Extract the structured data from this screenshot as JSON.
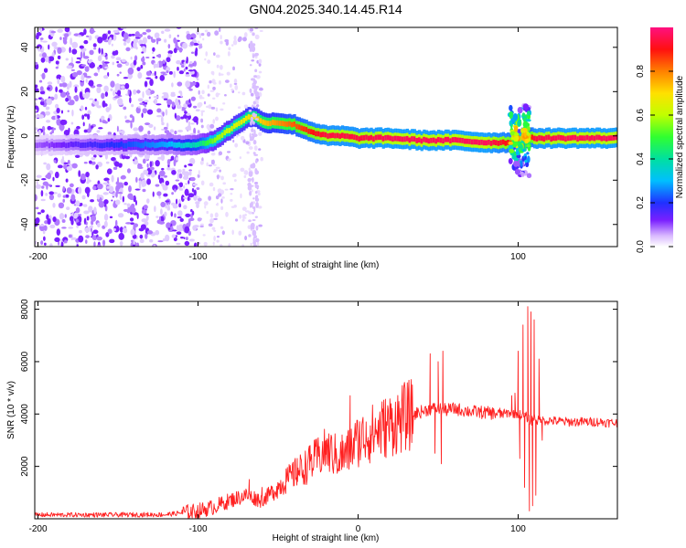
{
  "figure_title": "GN04.2025.340.14.45.R14",
  "chart_data": [
    {
      "type": "heatmap",
      "title": "GN04.2025.340.14.45.R14",
      "xlabel": "Height of straight line (km)",
      "ylabel": "Frequency (Hz)",
      "xlim": [
        -202,
        162
      ],
      "ylim": [
        -50,
        49
      ],
      "x_ticks": [
        -200,
        -100,
        0,
        100
      ],
      "x_tick_labels": [
        "-200",
        "-100",
        "",
        "100"
      ],
      "y_ticks": [
        -40,
        -20,
        0,
        20,
        40
      ],
      "y_tick_labels": [
        "-40",
        "-20",
        "0",
        "20",
        "40"
      ],
      "colorbar": {
        "label": "Normalized spectral amplitude",
        "range": [
          0,
          1
        ],
        "ticks": [
          0,
          0.2,
          0.4,
          0.6,
          0.8
        ],
        "tick_labels": [
          "0.0",
          "0.2",
          "0.4",
          "0.6",
          "0.8"
        ],
        "colors": [
          "#ffffff",
          "#d9b8ff",
          "#7a20ff",
          "#2030ff",
          "#00bfff",
          "#00e0a0",
          "#30ff30",
          "#c0ff00",
          "#ffe000",
          "#ff8000",
          "#ff1010",
          "#ff1080"
        ]
      },
      "ridge": {
        "x": [
          -200,
          -180,
          -160,
          -140,
          -120,
          -110,
          -100,
          -90,
          -80,
          -70,
          -65,
          -60,
          -50,
          -40,
          -30,
          -20,
          -10,
          0,
          20,
          40,
          60,
          80,
          95,
          100,
          110,
          130,
          160
        ],
        "freq": [
          -4,
          -4,
          -4,
          -4,
          -4,
          -4,
          -4,
          -2,
          3,
          8,
          9,
          6,
          6,
          5,
          2,
          0,
          0,
          -1,
          -1,
          -2,
          -2,
          -3,
          -3,
          -1,
          -1,
          -1,
          -1
        ],
        "amplitude": [
          0.15,
          0.2,
          0.25,
          0.3,
          0.35,
          0.4,
          0.45,
          0.6,
          0.65,
          0.7,
          0.72,
          0.75,
          0.8,
          0.85,
          0.9,
          0.95,
          0.95,
          0.95,
          0.97,
          0.97,
          0.97,
          0.97,
          0.9,
          0.6,
          0.95,
          0.97,
          0.97
        ]
      },
      "noise_region_x": [
        -202,
        -100
      ]
    },
    {
      "type": "line",
      "xlabel": "Height of straight line (km)",
      "ylabel": "SNR (10 * v/v)",
      "xlim": [
        -202,
        162
      ],
      "ylim": [
        0,
        8300
      ],
      "x_ticks": [
        -200,
        -100,
        0,
        100
      ],
      "x_tick_labels": [
        "-200",
        "-100",
        "0",
        "100"
      ],
      "y_ticks": [
        2000,
        4000,
        6000,
        8000
      ],
      "y_tick_labels": [
        "2000",
        "4000",
        "6000",
        "8000"
      ],
      "series": [
        {
          "name": "SNR",
          "color": "#ff2020",
          "x": [
            -202,
            -160,
            -120,
            -100,
            -90,
            -80,
            -70,
            -60,
            -50,
            -40,
            -30,
            -20,
            -10,
            0,
            10,
            20,
            30,
            40,
            45,
            50,
            55,
            60,
            70,
            80,
            90,
            95,
            100,
            105,
            108,
            110,
            112,
            115,
            120,
            130,
            140,
            150,
            162
          ],
          "y": [
            150,
            150,
            160,
            300,
            450,
            700,
            900,
            700,
            1200,
            1700,
            2100,
            2600,
            2300,
            3000,
            3300,
            3600,
            3900,
            4100,
            4200,
            4200,
            4150,
            4200,
            4100,
            4050,
            4000,
            4050,
            4000,
            3900,
            3700,
            3900,
            3750,
            3750,
            3750,
            3700,
            3700,
            3700,
            3650
          ],
          "spikes": [
            {
              "x": -68,
              "y": 1500
            },
            {
              "x": -60,
              "y": 1200
            },
            {
              "x": -45,
              "y": 1900
            },
            {
              "x": -38,
              "y": 2300
            },
            {
              "x": -30,
              "y": 2800
            },
            {
              "x": -20,
              "y": 3000
            },
            {
              "x": -10,
              "y": 3200
            },
            {
              "x": -5,
              "y": 4700
            },
            {
              "x": 5,
              "y": 3700
            },
            {
              "x": 15,
              "y": 4100
            },
            {
              "x": 25,
              "y": 3600
            },
            {
              "x": 45,
              "y": 6300
            },
            {
              "x": 48,
              "y": 2500
            },
            {
              "x": 50,
              "y": 6000
            },
            {
              "x": 52,
              "y": 2100
            },
            {
              "x": 53,
              "y": 6400
            },
            {
              "x": 96,
              "y": 4700
            },
            {
              "x": 98,
              "y": 4800
            },
            {
              "x": 100,
              "y": 6400
            },
            {
              "x": 101,
              "y": 2300
            },
            {
              "x": 103,
              "y": 7400
            },
            {
              "x": 104,
              "y": 1200
            },
            {
              "x": 106,
              "y": 8100
            },
            {
              "x": 107,
              "y": 300
            },
            {
              "x": 108,
              "y": 7900
            },
            {
              "x": 109,
              "y": 500
            },
            {
              "x": 110,
              "y": 7600
            },
            {
              "x": 111,
              "y": 900
            },
            {
              "x": 113,
              "y": 6100
            },
            {
              "x": 115,
              "y": 3000
            }
          ]
        }
      ]
    }
  ]
}
